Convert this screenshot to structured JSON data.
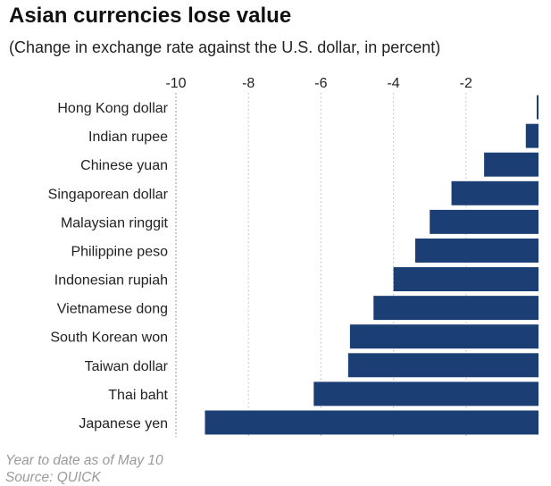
{
  "title": "Asian currencies lose value",
  "subtitle": "(Change in exchange rate against the U.S. dollar, in percent)",
  "footnote": "Year to date as of May 10",
  "source": "Source: QUICK",
  "colors": {
    "bar": "#1b3f74",
    "grid": "#b8b8b8",
    "axis": "#999999",
    "text": "#222222"
  },
  "chart_data": {
    "type": "bar",
    "orientation": "horizontal",
    "title": "Asian currencies lose value",
    "subtitle": "(Change in exchange rate against the U.S. dollar, in percent)",
    "xlabel": "",
    "ylabel": "",
    "xlim": [
      -10,
      0
    ],
    "xticks": [
      -10,
      -8,
      -6,
      -4,
      -2
    ],
    "xtick_labels": [
      "-10",
      "-8",
      "-6",
      "-4",
      "-2"
    ],
    "grid": true,
    "categories": [
      "Hong Kong dollar",
      "Indian rupee",
      "Chinese yuan",
      "Singaporean dollar",
      "Malaysian ringgit",
      "Philippine peso",
      "Indonesian rupiah",
      "Vietnamese dong",
      "South Korean won",
      "Taiwan dollar",
      "Thai baht",
      "Japanese yen"
    ],
    "values": [
      -0.05,
      -0.35,
      -1.5,
      -2.4,
      -3.0,
      -3.4,
      -4.0,
      -4.55,
      -5.2,
      -5.25,
      -6.2,
      -9.2
    ]
  }
}
